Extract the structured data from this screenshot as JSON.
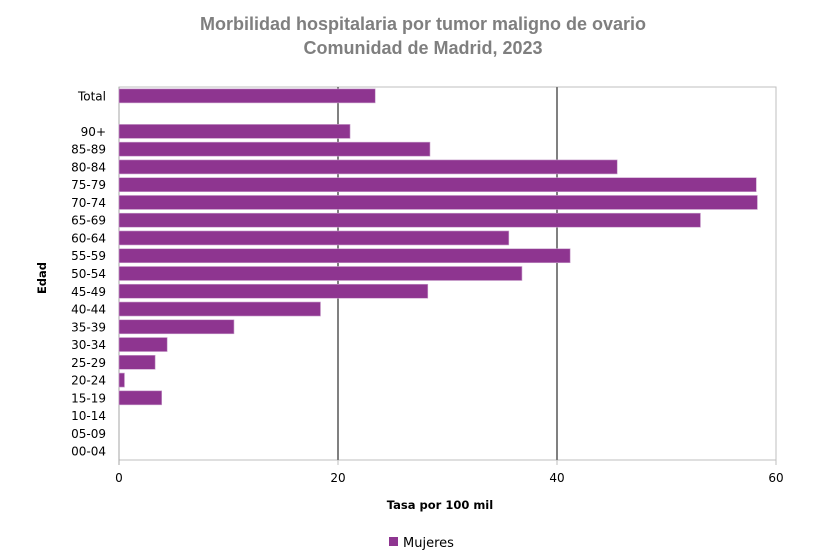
{
  "chart_data": {
    "type": "bar",
    "orientation": "horizontal",
    "title": "Morbilidad hospitalaria por tumor maligno de ovario",
    "subtitle": "Comunidad de Madrid, 2023",
    "xlabel": "Tasa por 100 mil",
    "ylabel": "Edad",
    "xlim": [
      0,
      60
    ],
    "xticks": [
      0,
      20,
      40,
      60
    ],
    "grid": "vertical",
    "legend_placement": "bottom",
    "categories": [
      "Total",
      "",
      "90+",
      "85-89",
      "80-84",
      "75-79",
      "70-74",
      "65-69",
      "60-64",
      "55-59",
      "50-54",
      "45-49",
      "40-44",
      "35-39",
      "30-34",
      "25-29",
      "20-24",
      "15-19",
      "10-14",
      "05-09",
      "00-04"
    ],
    "series": [
      {
        "name": "Mujeres",
        "color": "#8e3590",
        "values": [
          23.4,
          null,
          21.1,
          28.4,
          45.5,
          58.2,
          58.3,
          53.1,
          35.6,
          41.2,
          36.8,
          28.2,
          18.4,
          10.5,
          4.4,
          3.3,
          0.5,
          3.9,
          0,
          0,
          0
        ]
      }
    ]
  }
}
